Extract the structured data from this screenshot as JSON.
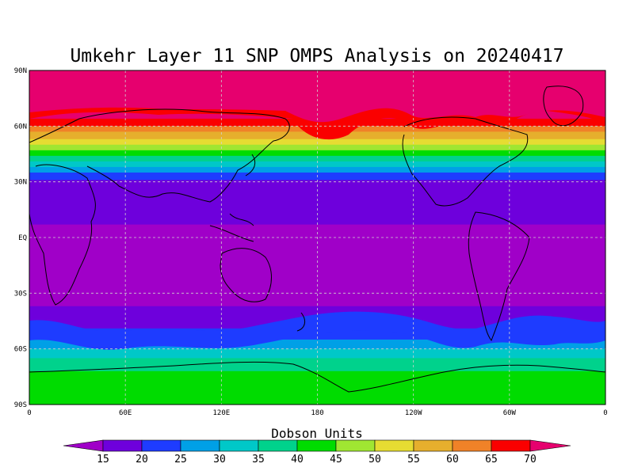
{
  "title": "Umkehr Layer 11 SNP OMPS Analysis on 20240417",
  "map": {
    "lat_ticks": [
      "90N",
      "60N",
      "30N",
      "EQ",
      "30S",
      "60S",
      "90S"
    ],
    "lon_ticks": [
      "0",
      "60E",
      "120E",
      "180",
      "120W",
      "60W",
      "0"
    ],
    "grid": true
  },
  "colorbar": {
    "label": "Dobson Units",
    "ticks": [
      "15",
      "20",
      "25",
      "30",
      "35",
      "40",
      "45",
      "50",
      "55",
      "60",
      "65",
      "70"
    ],
    "colors": [
      "#a000c8",
      "#6e00dc",
      "#1e3cff",
      "#00a0e6",
      "#00c8c8",
      "#00d28c",
      "#00dc00",
      "#a0e632",
      "#e6dc32",
      "#e6af2d",
      "#f08228",
      "#fa0000",
      "#e6006e"
    ]
  },
  "chart_data": {
    "type": "heatmap",
    "title": "Umkehr Layer 11 SNP OMPS Analysis on 20240417",
    "colorbar_label": "Dobson Units",
    "levels": [
      15,
      20,
      25,
      30,
      35,
      40,
      45,
      50,
      55,
      60,
      65,
      70
    ],
    "xrange": [
      0,
      360
    ],
    "yrange": [
      -90,
      90
    ],
    "lat_band_values": [
      {
        "lat": 90,
        "value": 72
      },
      {
        "lat": 65,
        "value": 72
      },
      {
        "lat": 58,
        "value": 62
      },
      {
        "lat": 50,
        "value": 50
      },
      {
        "lat": 45,
        "value": 42
      },
      {
        "lat": 38,
        "value": 30
      },
      {
        "lat": 30,
        "value": 18
      },
      {
        "lat": 0,
        "value": 14
      },
      {
        "lat": -30,
        "value": 14
      },
      {
        "lat": -45,
        "value": 16
      },
      {
        "lat": -55,
        "value": 25
      },
      {
        "lat": -65,
        "value": 35
      },
      {
        "lat": -75,
        "value": 42
      },
      {
        "lat": -90,
        "value": 43
      }
    ]
  }
}
